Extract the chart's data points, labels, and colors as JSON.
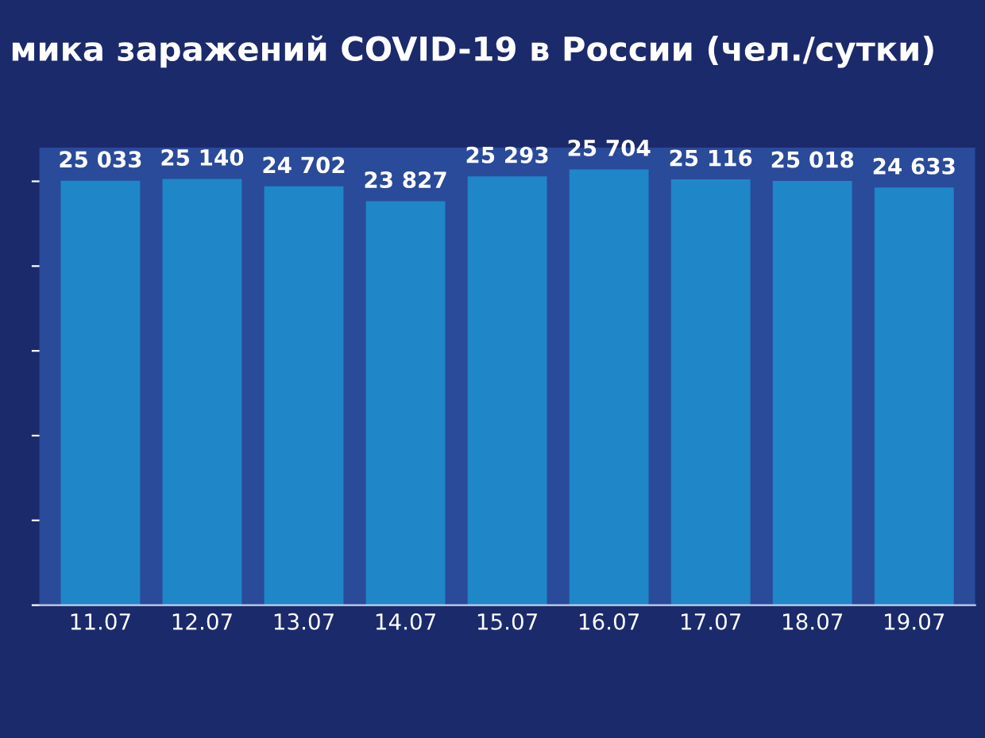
{
  "chart_data": {
    "type": "bar",
    "title": "мика заражений COVID-19 в России (чел./сутки)",
    "categories": [
      "11.07",
      "12.07",
      "13.07",
      "14.07",
      "15.07",
      "16.07",
      "17.07",
      "18.07",
      "19.07"
    ],
    "values": [
      25033,
      25140,
      24702,
      23827,
      25293,
      25704,
      25116,
      25018,
      24633
    ],
    "value_labels": [
      "25 033",
      "25 140",
      "24 702",
      "23 827",
      "25 293",
      "25 704",
      "25 116",
      "25 018",
      "24 633"
    ],
    "color": "#1f86c8",
    "tick_labels": "x",
    "grid": false
  }
}
